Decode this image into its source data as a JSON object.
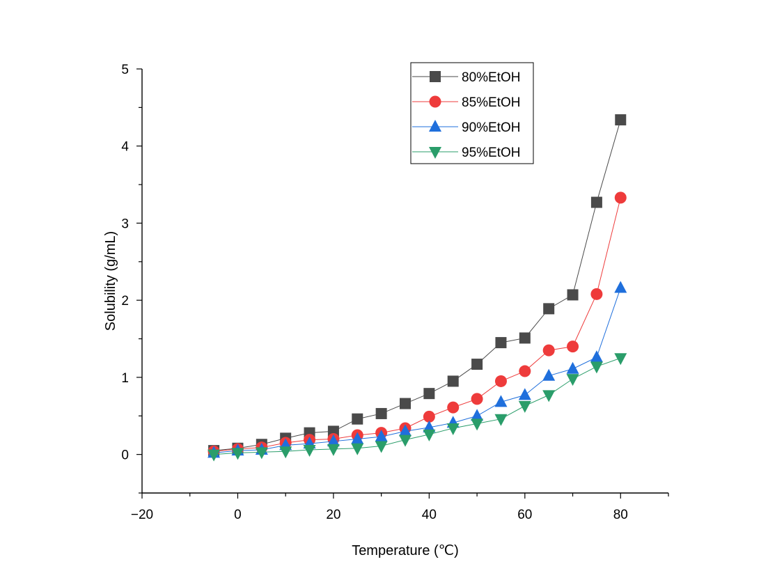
{
  "chart_data": {
    "type": "line",
    "xlabel": "Temperature (℃)",
    "ylabel": "Solubility (g/mL)",
    "xlim": [
      -20,
      90
    ],
    "ylim": [
      -0.5,
      5
    ],
    "x_ticks": [
      -20,
      0,
      20,
      40,
      60,
      80
    ],
    "x_tick_labels": [
      "−20",
      "0",
      "20",
      "40",
      "60",
      "80"
    ],
    "y_ticks": [
      0,
      1,
      2,
      3,
      4,
      5
    ],
    "y_tick_labels": [
      "0",
      "1",
      "2",
      "3",
      "4",
      "5"
    ],
    "grid": false,
    "legend_position": "top-right",
    "x": [
      -5,
      0,
      5,
      10,
      15,
      20,
      25,
      30,
      35,
      40,
      45,
      50,
      55,
      60,
      65,
      70,
      75,
      80
    ],
    "series": [
      {
        "name": "80%EtOH",
        "color": "#4a4a4a",
        "marker": "square",
        "values": [
          0.05,
          0.08,
          0.13,
          0.21,
          0.28,
          0.3,
          0.46,
          0.53,
          0.66,
          0.79,
          0.95,
          1.17,
          1.45,
          1.51,
          1.89,
          2.07,
          3.27,
          4.34
        ]
      },
      {
        "name": "85%EtOH",
        "color": "#ee3b3b",
        "marker": "circle",
        "values": [
          0.04,
          0.07,
          0.09,
          0.15,
          0.19,
          0.2,
          0.25,
          0.28,
          0.34,
          0.49,
          0.61,
          0.72,
          0.95,
          1.08,
          1.35,
          1.4,
          2.08,
          3.33
        ]
      },
      {
        "name": "90%EtOH",
        "color": "#1f6fdc",
        "marker": "triangle-up",
        "values": [
          0.02,
          0.05,
          0.06,
          0.12,
          0.14,
          0.17,
          0.2,
          0.23,
          0.3,
          0.35,
          0.41,
          0.5,
          0.68,
          0.77,
          1.02,
          1.11,
          1.26,
          2.16
        ]
      },
      {
        "name": "95%EtOH",
        "color": "#2a9d6a",
        "marker": "triangle-down",
        "values": [
          0.0,
          0.02,
          0.03,
          0.04,
          0.06,
          0.07,
          0.08,
          0.11,
          0.19,
          0.26,
          0.34,
          0.4,
          0.46,
          0.63,
          0.77,
          0.98,
          1.14,
          1.25
        ]
      }
    ]
  }
}
